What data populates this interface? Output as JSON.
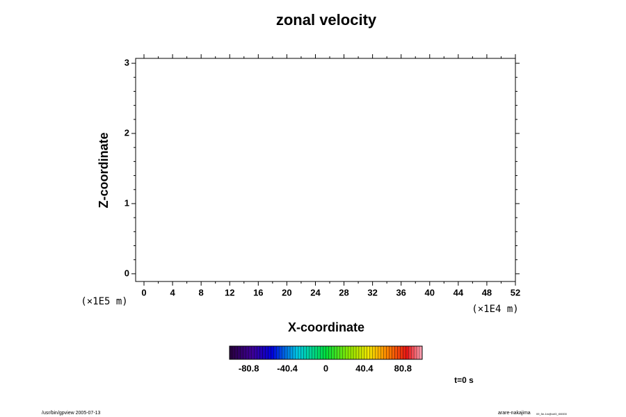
{
  "chart_data": {
    "type": "empty",
    "title": "zonal velocity",
    "xlabel": "X-coordinate",
    "ylabel": "Z-coordinate",
    "x_scale_label": "(×1E4 m)",
    "y_scale_label": "(×1E5 m)",
    "xlim": [
      -1.17,
      52
    ],
    "xticks": [
      0,
      4,
      8,
      12,
      16,
      20,
      24,
      28,
      32,
      36,
      40,
      44,
      48,
      52
    ],
    "ylim": [
      -0.11,
      3.07
    ],
    "yticks": [
      0,
      1,
      2,
      3
    ],
    "colorbar": {
      "lim": [
        -101,
        101
      ],
      "ticks": [
        -80.8,
        -40.4,
        0,
        40.4,
        80.8
      ]
    },
    "time_label": "t=0 s",
    "footer_left": "/usr/bin/gpview 2005-07-13",
    "footer_right": "arare-nakajima",
    "footer_right_sub": "09_5e-1m@vel3_t00000"
  }
}
